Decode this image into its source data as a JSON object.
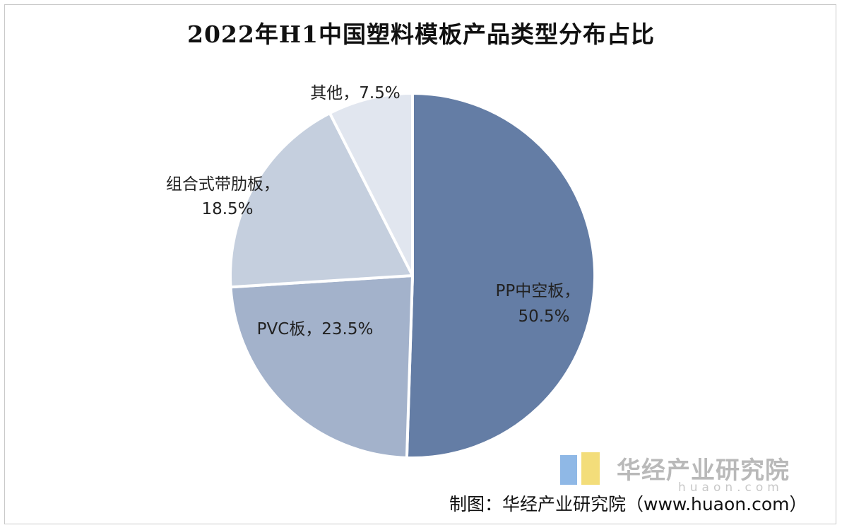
{
  "title": "2022年H1中国塑料模板产品类型分布占比",
  "chart_data": {
    "type": "pie",
    "title": "2022年H1中国塑料模板产品类型分布占比",
    "slices": [
      {
        "label": "PP中空板",
        "value": 50.5,
        "value_label": "50.5%",
        "color": "#647da5"
      },
      {
        "label": "PVC板",
        "value": 23.5,
        "value_label": "23.5%",
        "color": "#a3b2cb"
      },
      {
        "label": "组合式带肋板",
        "value": 18.5,
        "value_label": "18.5%",
        "color": "#c5cfde"
      },
      {
        "label": "其他",
        "value": 7.5,
        "value_label": "7.5%",
        "color": "#e1e6ef"
      }
    ],
    "start": "12 o'clock",
    "direction": "clockwise"
  },
  "labels": {
    "pp": [
      "PP中空板，",
      "50.5%"
    ],
    "pvc": [
      "PVC板，23.5%"
    ],
    "combo": [
      "组合式带肋板，",
      "18.5%"
    ],
    "other": [
      "其他，7.5%"
    ]
  },
  "watermark": {
    "name": "华经产业研究院",
    "url": "huaon.com",
    "logo_colors": [
      "#8fb8e6",
      "#f3dd7a"
    ]
  },
  "source": "制图：华经产业研究院（www.huaon.com）"
}
